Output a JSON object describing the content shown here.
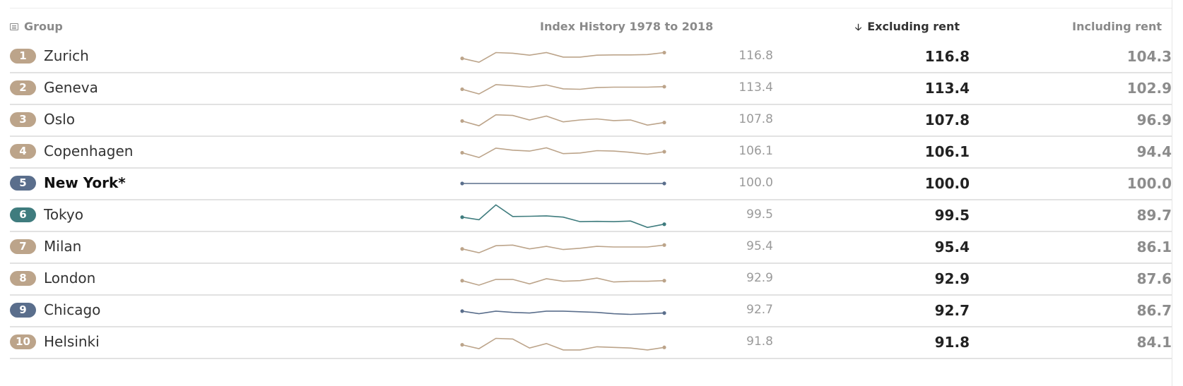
{
  "header": {
    "group_label": "Group",
    "history_label": "Index History 1978 to 2018",
    "excluding_label": "Excluding rent",
    "including_label": "Including rent",
    "sort_icon": "arrow-down-icon",
    "group_icon": "list-icon"
  },
  "colors": {
    "beige": "#bca48a",
    "slate": "#5a6e8c",
    "teal": "#3f7c7e"
  },
  "rows": [
    {
      "rank": "1",
      "city": "Zurich",
      "value": "116.8",
      "excluding": "116.8",
      "including": "104.3",
      "color": "#bca48a",
      "bold": false,
      "spark": [
        0.35,
        0.05,
        0.8,
        0.75,
        0.6,
        0.8,
        0.45,
        0.45,
        0.6,
        0.62,
        0.62,
        0.65,
        0.8
      ]
    },
    {
      "rank": "2",
      "city": "Geneva",
      "value": "113.4",
      "excluding": "113.4",
      "including": "102.9",
      "color": "#bca48a",
      "bold": false,
      "spark": [
        0.42,
        0.05,
        0.78,
        0.7,
        0.58,
        0.75,
        0.45,
        0.42,
        0.55,
        0.58,
        0.58,
        0.58,
        0.62
      ]
    },
    {
      "rank": "3",
      "city": "Oslo",
      "value": "107.8",
      "excluding": "107.8",
      "including": "96.9",
      "color": "#bca48a",
      "bold": false,
      "spark": [
        0.42,
        0.05,
        0.9,
        0.85,
        0.5,
        0.8,
        0.35,
        0.5,
        0.58,
        0.45,
        0.5,
        0.1,
        0.3
      ]
    },
    {
      "rank": "4",
      "city": "Copenhagen",
      "value": "106.1",
      "excluding": "106.1",
      "including": "94.4",
      "color": "#bca48a",
      "bold": false,
      "spark": [
        0.42,
        0.05,
        0.78,
        0.62,
        0.55,
        0.8,
        0.35,
        0.4,
        0.58,
        0.55,
        0.45,
        0.3,
        0.5
      ]
    },
    {
      "rank": "5",
      "city": "New York*",
      "value": "100.0",
      "excluding": "100.0",
      "including": "100.0",
      "color": "#5a6e8c",
      "bold": true,
      "spark": [
        0.5,
        0.5,
        0.5,
        0.5,
        0.5,
        0.5,
        0.5,
        0.5,
        0.5,
        0.5,
        0.5,
        0.5,
        0.5
      ]
    },
    {
      "rank": "6",
      "city": "Tokyo",
      "value": "99.5",
      "excluding": "99.5",
      "including": "89.7",
      "color": "#3f7c7e",
      "bold": false,
      "spark": [
        0.35,
        0.15,
        1.3,
        0.4,
        0.42,
        0.45,
        0.35,
        0.0,
        0.02,
        0.0,
        0.05,
        -0.45,
        -0.2
      ]
    },
    {
      "rank": "7",
      "city": "Milan",
      "value": "95.4",
      "excluding": "95.4",
      "including": "86.1",
      "color": "#bca48a",
      "bold": false,
      "spark": [
        0.35,
        0.05,
        0.6,
        0.65,
        0.35,
        0.55,
        0.3,
        0.4,
        0.55,
        0.5,
        0.5,
        0.5,
        0.65
      ]
    },
    {
      "rank": "8",
      "city": "London",
      "value": "92.9",
      "excluding": "92.9",
      "including": "87.6",
      "color": "#bca48a",
      "bold": false,
      "spark": [
        0.35,
        0.0,
        0.45,
        0.45,
        0.1,
        0.5,
        0.3,
        0.35,
        0.55,
        0.25,
        0.3,
        0.3,
        0.35
      ]
    },
    {
      "rank": "9",
      "city": "Chicago",
      "value": "92.7",
      "excluding": "92.7",
      "including": "86.7",
      "color": "#5a6e8c",
      "bold": false,
      "spark": [
        0.45,
        0.25,
        0.45,
        0.35,
        0.3,
        0.45,
        0.45,
        0.4,
        0.35,
        0.25,
        0.2,
        0.25,
        0.3
      ]
    },
    {
      "rank": "10",
      "city": "Helsinki",
      "value": "91.8",
      "excluding": "91.8",
      "including": "84.1",
      "color": "#bca48a",
      "bold": false,
      "spark": [
        0.3,
        0.0,
        0.8,
        0.75,
        0.05,
        0.4,
        -0.1,
        -0.1,
        0.15,
        0.1,
        0.05,
        -0.1,
        0.1
      ]
    }
  ]
}
